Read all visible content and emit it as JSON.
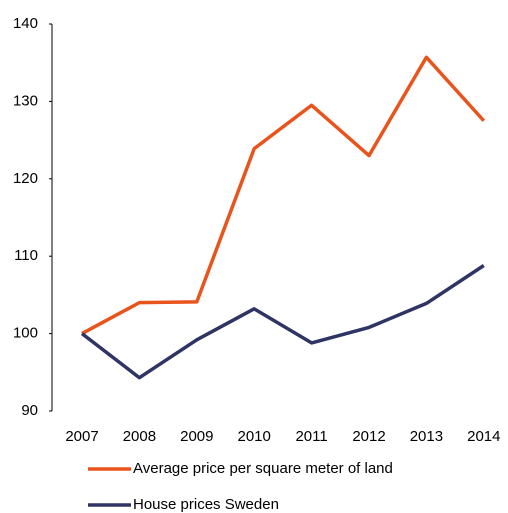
{
  "chart_data": {
    "type": "line",
    "categories": [
      "2007",
      "2008",
      "2009",
      "2010",
      "2011",
      "2012",
      "2013",
      "2014"
    ],
    "series": [
      {
        "name": "Average price per square meter of land",
        "color": "#e8541c",
        "values": [
          100,
          104.0,
          104.1,
          123.9,
          129.5,
          123.0,
          135.7,
          127.5
        ]
      },
      {
        "name": "House prices Sweden",
        "color": "#2e3564",
        "values": [
          100,
          94.3,
          99.2,
          103.2,
          98.8,
          100.8,
          103.9,
          108.8
        ]
      }
    ],
    "ylim": [
      90,
      140
    ],
    "yticks": [
      90,
      100,
      110,
      120,
      130,
      140
    ]
  }
}
